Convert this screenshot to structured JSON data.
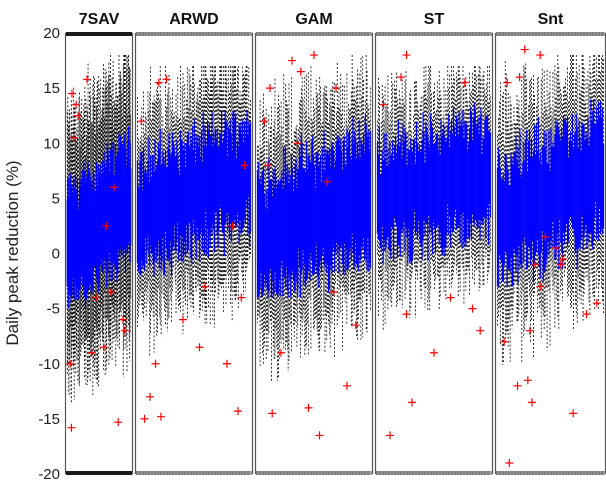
{
  "chart_data": {
    "type": "box",
    "ylabel": "Daily peak reduction (%)",
    "ylim": [
      -20,
      20
    ],
    "yticks": [
      -20,
      -15,
      -10,
      -5,
      0,
      5,
      10,
      15,
      20
    ],
    "grid": false,
    "colors": {
      "box": "#0000ff",
      "whisker": "#000000",
      "outlier": "#ff0000"
    },
    "panels": [
      {
        "title": "7SAV",
        "box_count": 120,
        "box_range": [
          -5,
          15
        ],
        "whisker_range": [
          -15,
          18
        ],
        "trend": [
          0.5,
          5.0
        ],
        "box_halfwidth": 4.5,
        "whisker_halfwidth": 11.0,
        "outliers": [
          [
            0.05,
            14.5
          ],
          [
            0.12,
            13.5
          ],
          [
            0.3,
            15.8
          ],
          [
            0.75,
            6.0
          ],
          [
            0.62,
            2.5
          ],
          [
            0.45,
            -4.0
          ],
          [
            0.58,
            -8.5
          ],
          [
            0.93,
            -7.0
          ],
          [
            0.82,
            -15.3
          ],
          [
            0.02,
            -10.0
          ],
          [
            0.04,
            -15.8
          ],
          [
            0.9,
            -6.0
          ],
          [
            0.08,
            10.5
          ],
          [
            0.15,
            12.5
          ],
          [
            0.38,
            -9.0
          ],
          [
            0.7,
            -3.5
          ]
        ]
      },
      {
        "title": "ARWD",
        "box_count": 130,
        "box_range": [
          -2,
          13
        ],
        "whisker_range": [
          -15,
          17
        ],
        "trend": [
          3.5,
          7.5
        ],
        "box_halfwidth": 4.5,
        "whisker_halfwidth": 9.5,
        "outliers": [
          [
            0.02,
            12.0
          ],
          [
            0.18,
            15.5
          ],
          [
            0.25,
            15.8
          ],
          [
            0.1,
            -13.0
          ],
          [
            0.2,
            -14.8
          ],
          [
            0.15,
            -10.0
          ],
          [
            0.55,
            -8.5
          ],
          [
            0.8,
            -10.0
          ],
          [
            0.9,
            -14.3
          ],
          [
            0.93,
            -4.0
          ],
          [
            0.4,
            -6.0
          ],
          [
            0.96,
            8.0
          ],
          [
            0.85,
            2.5
          ],
          [
            0.6,
            -3.0
          ],
          [
            0.05,
            -15.0
          ]
        ]
      },
      {
        "title": "GAM",
        "box_count": 130,
        "box_range": [
          -4,
          14
        ],
        "whisker_range": [
          -16,
          18
        ],
        "trend": [
          1.5,
          5.5
        ],
        "box_halfwidth": 5.0,
        "whisker_halfwidth": 10.0,
        "outliers": [
          [
            0.1,
            15.0
          ],
          [
            0.3,
            17.5
          ],
          [
            0.38,
            16.5
          ],
          [
            0.5,
            18.0
          ],
          [
            0.7,
            15.0
          ],
          [
            0.12,
            -14.5
          ],
          [
            0.45,
            -14.0
          ],
          [
            0.55,
            -16.5
          ],
          [
            0.62,
            6.5
          ],
          [
            0.68,
            -3.5
          ],
          [
            0.88,
            -6.5
          ],
          [
            0.2,
            -9.0
          ],
          [
            0.05,
            12.0
          ],
          [
            0.8,
            -12.0
          ],
          [
            0.35,
            10.0
          ],
          [
            0.08,
            8.0
          ]
        ]
      },
      {
        "title": "ST",
        "box_count": 120,
        "box_range": [
          -1,
          14
        ],
        "whisker_range": [
          -13,
          17
        ],
        "trend": [
          5.0,
          7.5
        ],
        "box_halfwidth": 4.5,
        "whisker_halfwidth": 8.5,
        "outliers": [
          [
            0.04,
            13.5
          ],
          [
            0.25,
            18.0
          ],
          [
            0.1,
            -16.5
          ],
          [
            0.3,
            -13.5
          ],
          [
            0.25,
            -5.5
          ],
          [
            0.65,
            -4.0
          ],
          [
            0.85,
            -5.0
          ],
          [
            0.78,
            15.5
          ],
          [
            0.5,
            -9.0
          ],
          [
            0.2,
            16.0
          ],
          [
            0.92,
            -7.0
          ]
        ]
      },
      {
        "title": "Snt",
        "box_count": 110,
        "box_range": [
          -3,
          14
        ],
        "whisker_range": [
          -15,
          18
        ],
        "trend": [
          3.0,
          7.5
        ],
        "box_halfwidth": 5.0,
        "whisker_halfwidth": 10.0,
        "outliers": [
          [
            0.08,
            15.5
          ],
          [
            0.2,
            16.0
          ],
          [
            0.25,
            18.5
          ],
          [
            0.4,
            18.0
          ],
          [
            0.3,
            -7.0
          ],
          [
            0.28,
            -11.5
          ],
          [
            0.32,
            -13.5
          ],
          [
            0.4,
            -3.0
          ],
          [
            0.35,
            -1.0
          ],
          [
            0.6,
            -1.0
          ],
          [
            0.62,
            -0.5
          ],
          [
            0.55,
            0.5
          ],
          [
            0.72,
            -14.5
          ],
          [
            0.85,
            -5.5
          ],
          [
            0.1,
            -19.0
          ],
          [
            0.45,
            1.5
          ],
          [
            0.05,
            -8.0
          ],
          [
            0.95,
            -4.5
          ],
          [
            0.18,
            -12.0
          ]
        ]
      }
    ]
  }
}
